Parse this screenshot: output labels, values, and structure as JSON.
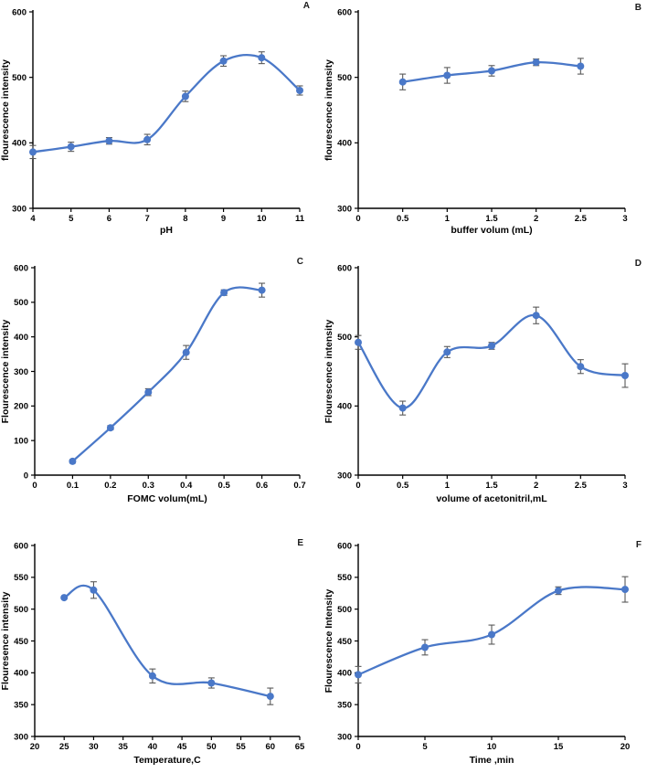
{
  "page": {
    "background": "#ffffff",
    "accent_line_color": "#4a78c8",
    "error_bar_color": "#595959",
    "axis_color": "#000000"
  },
  "chart_data": [
    {
      "panel": "A",
      "type": "line",
      "xlabel": "pH",
      "ylabel": "flourescence intensity",
      "xlim": [
        4,
        11
      ],
      "ylim": [
        300,
        600
      ],
      "xticks": [
        4,
        5,
        6,
        7,
        8,
        9,
        10,
        11
      ],
      "yticks": [
        300,
        400,
        500,
        600
      ],
      "x": [
        4,
        5,
        6,
        7,
        8,
        9,
        10,
        11
      ],
      "y": [
        386,
        394,
        403,
        405,
        471,
        525,
        530,
        480
      ],
      "yerr": [
        10,
        7,
        5,
        8,
        8,
        8,
        9,
        7
      ],
      "line_color": "#4a78c8",
      "error_color": "#595959",
      "grid": false,
      "legend": "none"
    },
    {
      "panel": "B",
      "type": "line",
      "xlabel": "buffer volum (mL)",
      "ylabel": "flourescence intensity",
      "xlim": [
        0,
        3
      ],
      "ylim": [
        300,
        600
      ],
      "xticks": [
        0,
        0.5,
        1,
        1.5,
        2,
        2.5,
        3
      ],
      "yticks": [
        300,
        400,
        500,
        600
      ],
      "x": [
        0.5,
        1,
        1.5,
        2,
        2.5
      ],
      "y": [
        493,
        503,
        510,
        523,
        517
      ],
      "yerr": [
        12,
        12,
        8,
        5,
        12
      ],
      "line_color": "#4a78c8",
      "error_color": "#595959",
      "grid": false,
      "legend": "none"
    },
    {
      "panel": "C",
      "type": "line",
      "xlabel": "FOMC volum(mL)",
      "ylabel": "Flourescence intensity",
      "xlim": [
        0,
        0.7
      ],
      "ylim": [
        0,
        600
      ],
      "xticks": [
        0,
        0.1,
        0.2,
        0.3,
        0.4,
        0.5,
        0.6,
        0.7
      ],
      "yticks": [
        0,
        100,
        200,
        300,
        400,
        500,
        600
      ],
      "x": [
        0.1,
        0.2,
        0.3,
        0.4,
        0.5,
        0.6
      ],
      "y": [
        40,
        137,
        240,
        355,
        528,
        535
      ],
      "yerr": [
        5,
        6,
        10,
        20,
        8,
        20
      ],
      "line_color": "#4a78c8",
      "error_color": "#595959",
      "grid": false,
      "legend": "none"
    },
    {
      "panel": "D",
      "type": "line",
      "xlabel": "volume of acetonitril,mL",
      "ylabel": "Flourescence intensity",
      "xlim": [
        0,
        3
      ],
      "ylim": [
        300,
        600
      ],
      "xticks": [
        0,
        0.5,
        1,
        1.5,
        2,
        2.5,
        3
      ],
      "yticks": [
        300,
        400,
        500,
        600
      ],
      "x": [
        0,
        0.5,
        1,
        1.5,
        2,
        2.5,
        3
      ],
      "y": [
        492,
        397,
        478,
        487,
        531,
        457,
        444
      ],
      "yerr": [
        10,
        10,
        8,
        5,
        12,
        10,
        17
      ],
      "line_color": "#4a78c8",
      "error_color": "#595959",
      "grid": false,
      "legend": "none"
    },
    {
      "panel": "E",
      "type": "line",
      "xlabel": "Temperature,C",
      "ylabel": "Flouresence intensity",
      "xlim": [
        20,
        65
      ],
      "ylim": [
        300,
        600
      ],
      "xticks": [
        20,
        25,
        30,
        35,
        40,
        45,
        50,
        55,
        60,
        65
      ],
      "yticks": [
        300,
        350,
        400,
        450,
        500,
        550,
        600
      ],
      "x": [
        25,
        30,
        40,
        50,
        60
      ],
      "y": [
        518,
        530,
        395,
        384,
        363
      ],
      "yerr": [
        0,
        13,
        11,
        8,
        13
      ],
      "line_color": "#4a78c8",
      "error_color": "#595959",
      "grid": false,
      "legend": "none"
    },
    {
      "panel": "F",
      "type": "line",
      "xlabel": "Time ,min",
      "ylabel": "Flourescence Intensity",
      "xlim": [
        0,
        20
      ],
      "ylim": [
        300,
        600
      ],
      "xticks": [
        0,
        5,
        10,
        15,
        20
      ],
      "yticks": [
        300,
        350,
        400,
        450,
        500,
        550,
        600
      ],
      "x": [
        0,
        5,
        10,
        15,
        20
      ],
      "y": [
        397,
        440,
        460,
        529,
        531
      ],
      "yerr": [
        13,
        12,
        15,
        6,
        20
      ],
      "line_color": "#4a78c8",
      "error_color": "#595959",
      "grid": false,
      "legend": "none"
    }
  ]
}
